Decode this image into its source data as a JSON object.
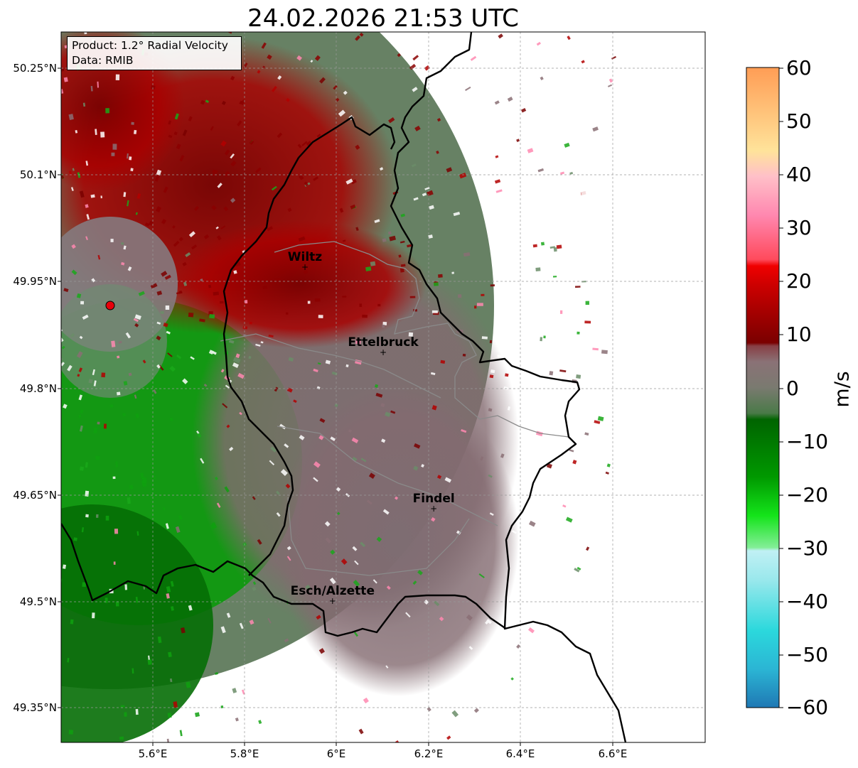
{
  "title": "24.02.2026 21:53 UTC",
  "info_box": {
    "product": "Product: 1.2° Radial Velocity",
    "data_source": "Data: RMIB"
  },
  "map": {
    "lat_ticks": [
      "50.25°N",
      "50.1°N",
      "49.95°N",
      "49.8°N",
      "49.65°N",
      "49.5°N",
      "49.35°N"
    ],
    "lon_ticks": [
      "5.6°E",
      "5.8°E",
      "6°E",
      "6.2°E",
      "6.4°E",
      "6.6°E"
    ],
    "lon_range": [
      5.4,
      6.8
    ],
    "lat_range": [
      49.3,
      50.3
    ],
    "gridlines": true,
    "radar_site_color": "#e8000b",
    "cities": [
      {
        "name": "Wiltz",
        "lon": 5.93,
        "lat": 49.97
      },
      {
        "name": "Ettelbruck",
        "lon": 6.1,
        "lat": 49.85
      },
      {
        "name": "Findel",
        "lon": 6.21,
        "lat": 49.63
      },
      {
        "name": "Esch/Alzette",
        "lon": 5.99,
        "lat": 49.5
      }
    ]
  },
  "colorbar": {
    "label": "m/s",
    "ticks": [
      "60",
      "50",
      "40",
      "30",
      "20",
      "10",
      "0",
      "−10",
      "−20",
      "−30",
      "−40",
      "−50",
      "−60"
    ],
    "range": [
      -60,
      60
    ],
    "colors": [
      "#1f78b4",
      "#2bd8dc",
      "#b7edf2",
      "#83ee97",
      "#14e41a",
      "#009900",
      "#006400",
      "#5a8057",
      "#8a7276",
      "#883f45",
      "#7a0000",
      "#cc0000",
      "#ff5a70",
      "#ff8fc6",
      "#ffe39a",
      "#ff9d55"
    ]
  }
}
